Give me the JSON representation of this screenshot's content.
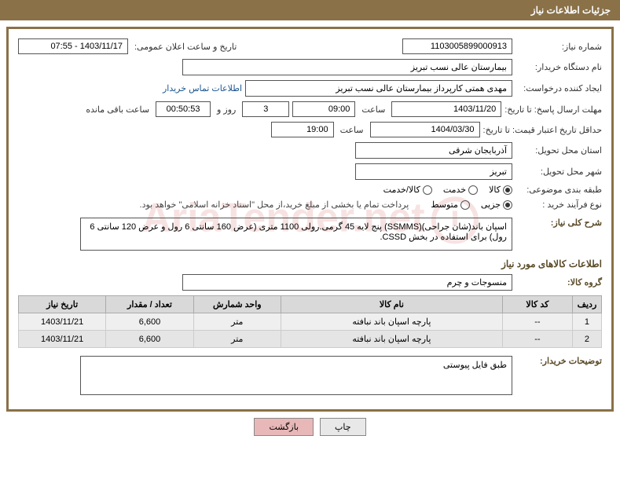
{
  "header": {
    "title": "جزئیات اطلاعات نیاز"
  },
  "fields": {
    "need_number_label": "شماره نیاز:",
    "need_number": "1103005899000913",
    "announce_date_label": "تاریخ و ساعت اعلان عمومی:",
    "announce_date": "1403/11/17 - 07:55",
    "buyer_org_label": "نام دستگاه خریدار:",
    "buyer_org": "بیمارستان عالی نسب تبریز",
    "requester_label": "ایجاد کننده درخواست:",
    "requester": "مهدی همتی کارپرداز بیمارستان عالی نسب تبریز",
    "contact_link": "اطلاعات تماس خریدار",
    "deadline_label": "مهلت ارسال پاسخ: تا تاریخ:",
    "deadline_date": "1403/11/20",
    "time_label": "ساعت",
    "deadline_time": "09:00",
    "days_remaining": "3",
    "days_suffix": "روز و",
    "time_remaining": "00:50:53",
    "remaining_suffix": "ساعت باقی مانده",
    "validity_label": "حداقل تاریخ اعتبار قیمت: تا تاریخ:",
    "validity_date": "1404/03/30",
    "validity_time": "19:00",
    "province_label": "استان محل تحویل:",
    "province": "آذربایجان شرقی",
    "city_label": "شهر محل تحویل:",
    "city": "تبریز",
    "category_label": "طبقه بندی موضوعی:",
    "process_label": "نوع فرآیند خرید :",
    "payment_note": "پرداخت تمام یا بخشی از مبلغ خرید،از محل \"اسناد خزانه اسلامی\" خواهد بود.",
    "desc_label": "شرح کلی نیاز:",
    "desc": "اسپان باند(شان جراحی)(SSMMS) پنج لایه 45 گرمی.رولی 1100 متری (عرض 160 سانتی 6 رول و عرض 120 سانتی 6 رول) برای استفاده در بخش CSSD.",
    "goods_section": "اطلاعات کالاهای مورد نیاز",
    "group_label": "گروه کالا:",
    "group": "منسوجات و چرم",
    "buyer_notes_label": "توضیحات خریدار:",
    "buyer_notes": "طبق فایل پیوستی"
  },
  "radios": {
    "category": [
      {
        "label": "کالا",
        "checked": true
      },
      {
        "label": "خدمت",
        "checked": false
      },
      {
        "label": "کالا/خدمت",
        "checked": false
      }
    ],
    "process": [
      {
        "label": "جزیی",
        "checked": true
      },
      {
        "label": "متوسط",
        "checked": false
      }
    ]
  },
  "table": {
    "headers": [
      "ردیف",
      "کد کالا",
      "نام کالا",
      "واحد شمارش",
      "تعداد / مقدار",
      "تاریخ نیاز"
    ],
    "rows": [
      [
        "1",
        "--",
        "پارچه اسپان باند نبافته",
        "متر",
        "6,600",
        "1403/11/21"
      ],
      [
        "2",
        "--",
        "پارچه اسپان باند نبافته",
        "متر",
        "6,600",
        "1403/11/21"
      ]
    ]
  },
  "buttons": {
    "print": "چاپ",
    "back": "بازگشت"
  },
  "watermark": "AriaTender.net",
  "colors": {
    "brand": "#8a7148",
    "link": "#1a5490"
  }
}
